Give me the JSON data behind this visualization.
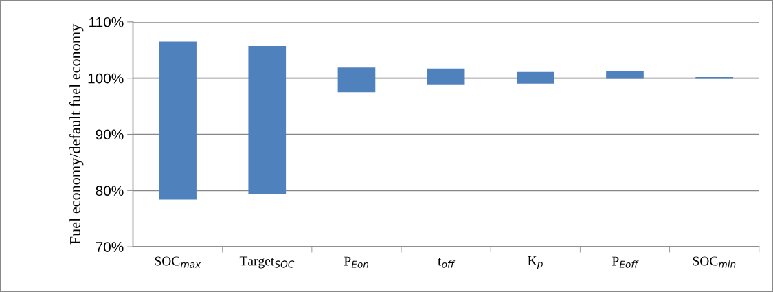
{
  "chart_data": {
    "type": "bar",
    "ylabel": "Fuel economy/default fuel economy",
    "categories": [
      "SOC$_{max}$",
      "Target$_{SOC}$",
      "P$_{Eon}$",
      "t$_{off}$",
      "K$_{p}$",
      "P$_{Eoff}$",
      "SOC$_{min}$"
    ],
    "base": [
      78.4,
      79.3,
      97.5,
      98.9,
      99.0,
      99.9,
      99.9
    ],
    "values": [
      28.1,
      26.4,
      4.4,
      2.8,
      2.1,
      1.3,
      0.3
    ],
    "color": "#4f81bd",
    "ylim": [
      70,
      110
    ],
    "yticks": [
      {
        "value": 70,
        "label": "70%"
      },
      {
        "value": 80,
        "label": "80%"
      },
      {
        "value": 90,
        "label": "90%"
      },
      {
        "value": 100,
        "label": "100%"
      },
      {
        "value": 110,
        "label": "110%"
      }
    ],
    "grid": "y"
  }
}
